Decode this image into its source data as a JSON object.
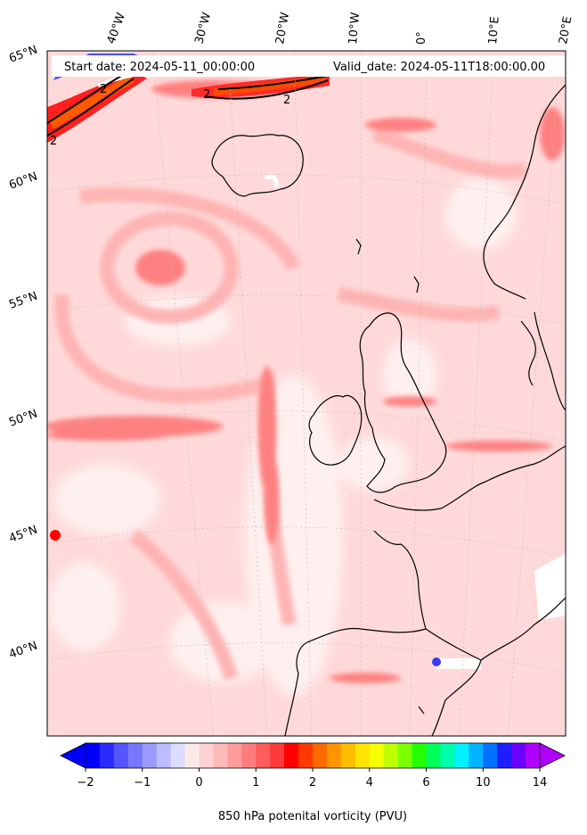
{
  "header": {
    "start_date": "Start date: 2024-05-11_00:00:00",
    "valid_date": "Valid_date: 2024-05-11T18:00:00.00"
  },
  "longitude_labels": [
    "40°W",
    "30°W",
    "20°W",
    "10°W",
    "0°",
    "10°E",
    "20°E"
  ],
  "latitude_labels": [
    "65°N",
    "60°N",
    "55°N",
    "50°N",
    "45°N",
    "40°N"
  ],
  "contour_labels": [
    "2",
    "2",
    "2",
    "2"
  ],
  "colorbar": {
    "title": "850 hPa potenital vorticity (PVU)",
    "tick_labels": [
      "−2",
      "−1",
      "0",
      "1",
      "2",
      "4",
      "6",
      "10",
      "14"
    ],
    "colors": [
      "#0000ff",
      "#2a2aff",
      "#5555ff",
      "#7878ff",
      "#9a9aff",
      "#bcbcff",
      "#dcdcff",
      "#fbe9e9",
      "#ffd2d2",
      "#ffb9b9",
      "#ff9c9c",
      "#ff7c7c",
      "#ff5c5c",
      "#ff3a3a",
      "#ff0000",
      "#ff3a00",
      "#ff6a00",
      "#ff9400",
      "#ffbe00",
      "#ffe400",
      "#f4ff00",
      "#c0ff00",
      "#7cff00",
      "#22ff00",
      "#00ff5a",
      "#00ffaa",
      "#00f0ff",
      "#00b4ff",
      "#0072ff",
      "#1e1eff",
      "#6a00ff",
      "#b000ff"
    ]
  },
  "map_colors": {
    "background": "#ffd9d9",
    "light": "#ffecec",
    "medium": "#ffb9b9",
    "strong": "#ff8c8c",
    "intense": "#ff3a3a",
    "extreme": "#ff4500",
    "negative": "#3434ff",
    "land_outline": "#000000"
  }
}
